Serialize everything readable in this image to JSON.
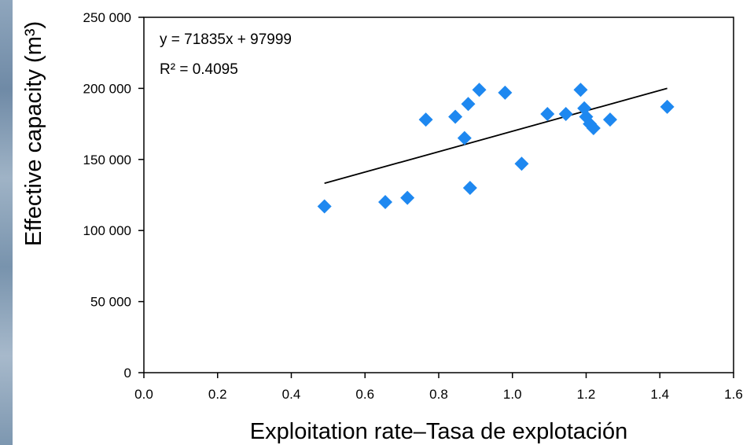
{
  "chart_data": {
    "type": "scatter",
    "xlabel": "Exploitation rate–Tasa de explotación",
    "ylabel": "Effective capacity (m³)",
    "xlim": [
      0.0,
      1.6
    ],
    "ylim": [
      0,
      250000
    ],
    "x_ticks": [
      "0.0",
      "0.2",
      "0.4",
      "0.6",
      "0.8",
      "1.0",
      "1.2",
      "1.4",
      "1.6"
    ],
    "y_ticks": [
      "0",
      "50 000",
      "100 000",
      "150 000",
      "200 000",
      "250 000"
    ],
    "grid": false,
    "marker_color": "#1e88f0",
    "marker_shape": "diamond",
    "points": [
      {
        "x": 0.49,
        "y": 117000
      },
      {
        "x": 0.655,
        "y": 120000
      },
      {
        "x": 0.715,
        "y": 123000
      },
      {
        "x": 0.765,
        "y": 178000
      },
      {
        "x": 0.845,
        "y": 180000
      },
      {
        "x": 0.87,
        "y": 165000
      },
      {
        "x": 0.88,
        "y": 189000
      },
      {
        "x": 0.885,
        "y": 130000
      },
      {
        "x": 0.91,
        "y": 199000
      },
      {
        "x": 0.98,
        "y": 197000
      },
      {
        "x": 1.025,
        "y": 147000
      },
      {
        "x": 1.095,
        "y": 182000
      },
      {
        "x": 1.145,
        "y": 182000
      },
      {
        "x": 1.185,
        "y": 199000
      },
      {
        "x": 1.195,
        "y": 186000
      },
      {
        "x": 1.2,
        "y": 180000
      },
      {
        "x": 1.21,
        "y": 175000
      },
      {
        "x": 1.22,
        "y": 172000
      },
      {
        "x": 1.265,
        "y": 178000
      },
      {
        "x": 1.42,
        "y": 187000
      }
    ],
    "trendline": {
      "slope": 71835,
      "intercept": 97999,
      "x_range": [
        0.49,
        1.42
      ],
      "color": "#000000"
    },
    "annotations": {
      "equation": "y = 71835x + 97999",
      "r_squared": "R² = 0.4095"
    }
  }
}
